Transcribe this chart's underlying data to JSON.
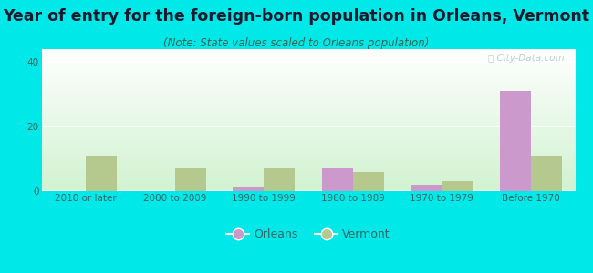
{
  "title": "Year of entry for the foreign-born population in Orleans, Vermont",
  "subtitle": "(Note: State values scaled to Orleans population)",
  "categories": [
    "2010 or later",
    "2000 to 2009",
    "1990 to 1999",
    "1980 to 1989",
    "1970 to 1979",
    "Before 1970"
  ],
  "orleans_values": [
    0,
    0,
    1,
    7,
    2,
    31
  ],
  "vermont_values": [
    11,
    7,
    7,
    6,
    3,
    11
  ],
  "orleans_color": "#cc99cc",
  "vermont_color": "#b5c98e",
  "background_color": "#00e8e8",
  "bar_width": 0.35,
  "ylim": [
    0,
    44
  ],
  "yticks": [
    0,
    20,
    40
  ],
  "title_fontsize": 12.5,
  "subtitle_fontsize": 8.5,
  "tick_fontsize": 7.5,
  "legend_fontsize": 9,
  "watermark": "Ⓜ City-Data.com"
}
